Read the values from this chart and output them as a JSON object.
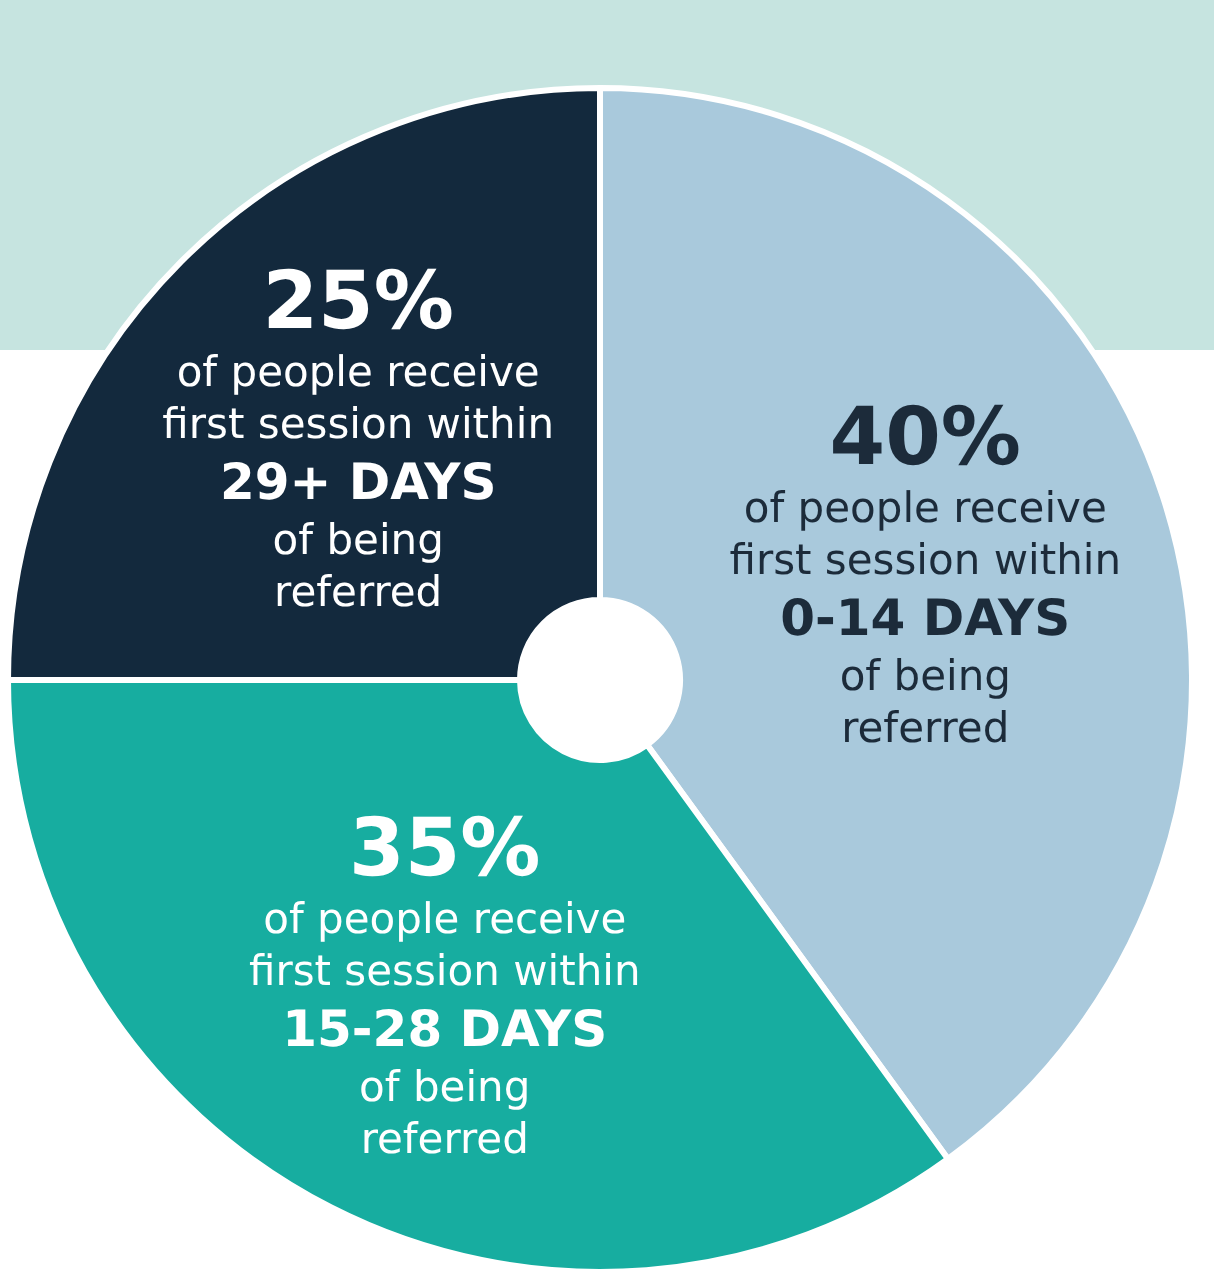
{
  "chart_data": {
    "type": "donut",
    "categories": [
      "of people receive\nfirst session within\n0-14 DAYS\nof being\nreferred",
      "of people receive\nfirst session within\n15-28 DAYS\nof being\nreferred",
      "of people receive\nfirst session within\n29+ DAYS\nof being\nreferred"
    ],
    "values": [
      40,
      35,
      25
    ],
    "value_labels": [
      "40%",
      "35%",
      "25%"
    ],
    "colors": [
      "#a9c9dc",
      "#17ada0",
      "#13293d"
    ]
  }
}
